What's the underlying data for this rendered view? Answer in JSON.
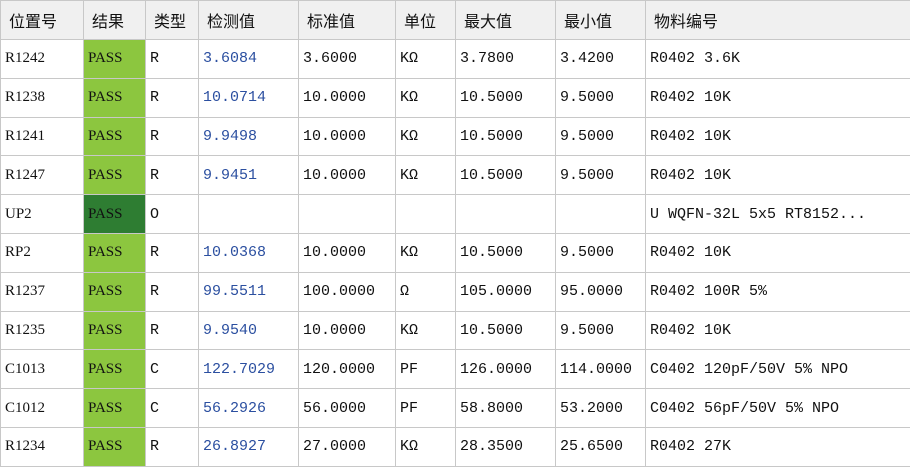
{
  "colors": {
    "pass": "#8cc63f",
    "pass_selected": "#2e7d32",
    "measured": "#2b4fa0"
  },
  "headers": [
    "位置号",
    "结果",
    "类型",
    "检测值",
    "标准值",
    "单位",
    "最大值",
    "最小值",
    "物料编号"
  ],
  "rows": [
    [
      "R1242",
      "PASS",
      "R",
      "3.6084",
      "3.6000",
      "KΩ",
      "3.7800",
      "3.4200",
      "R0402 3.6K"
    ],
    [
      "R1238",
      "PASS",
      "R",
      "10.0714",
      "10.0000",
      "KΩ",
      "10.5000",
      "9.5000",
      "R0402 10K"
    ],
    [
      "R1241",
      "PASS",
      "R",
      "9.9498",
      "10.0000",
      "KΩ",
      "10.5000",
      "9.5000",
      "R0402 10K"
    ],
    [
      "R1247",
      "PASS",
      "R",
      "9.9451",
      "10.0000",
      "KΩ",
      "10.5000",
      "9.5000",
      "R0402 10K"
    ],
    [
      "UP2",
      "PASS",
      "O",
      "",
      "",
      "",
      "",
      "",
      "U WQFN-32L 5x5  RT8152..."
    ],
    [
      "RP2",
      "PASS",
      "R",
      "10.0368",
      "10.0000",
      "KΩ",
      "10.5000",
      "9.5000",
      "R0402 10K"
    ],
    [
      "R1237",
      "PASS",
      "R",
      "99.5511",
      "100.0000",
      "Ω",
      "105.0000",
      "95.0000",
      "R0402 100R 5%"
    ],
    [
      "R1235",
      "PASS",
      "R",
      "9.9540",
      "10.0000",
      "KΩ",
      "10.5000",
      "9.5000",
      "R0402 10K"
    ],
    [
      "C1013",
      "PASS",
      "C",
      "122.7029",
      "120.0000",
      "PF",
      "126.0000",
      "114.0000",
      "C0402 120pF/50V 5% NPO"
    ],
    [
      "C1012",
      "PASS",
      "C",
      "56.2926",
      "56.0000",
      "PF",
      "58.8000",
      "53.2000",
      "C0402 56pF/50V 5% NPO"
    ],
    [
      "R1234",
      "PASS",
      "R",
      "26.8927",
      "27.0000",
      "KΩ",
      "28.3500",
      "25.6500",
      "R0402 27K"
    ]
  ]
}
